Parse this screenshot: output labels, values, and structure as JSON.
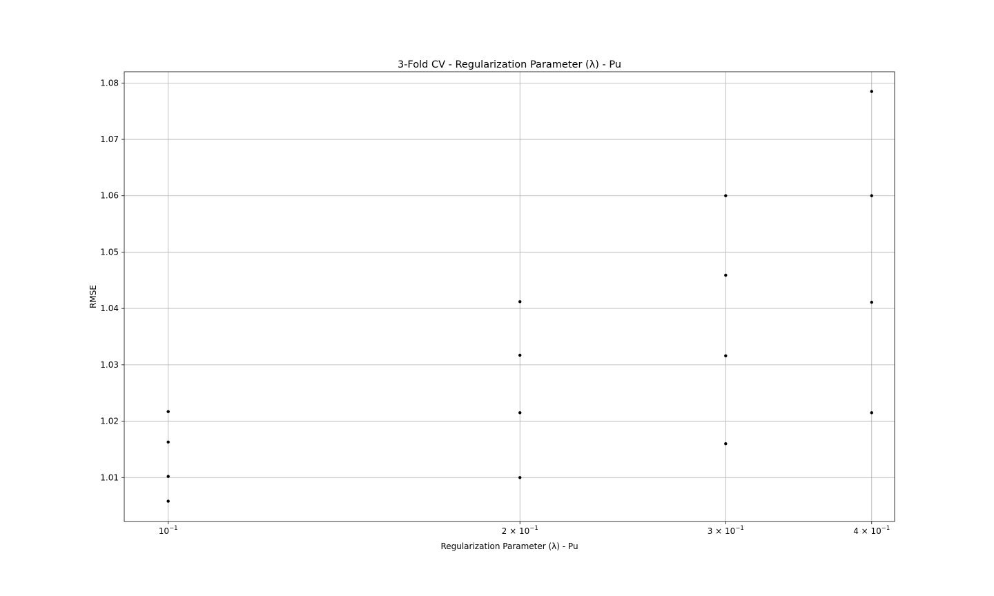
{
  "chart_data": {
    "type": "scatter",
    "title": "3-Fold CV - Regularization Parameter (λ) - Pu",
    "xlabel": "Regularization Parameter (λ) - Pu",
    "ylabel": "RMSE",
    "xscale": "log",
    "xlim": [
      0.0917,
      0.4185
    ],
    "ylim": [
      1.0022,
      1.082
    ],
    "grid": true,
    "legend": "none",
    "marker_color": "#000000",
    "x_ticks": [
      {
        "value": 0.1,
        "mantissa": "",
        "base": "10",
        "exp": "−1"
      },
      {
        "value": 0.2,
        "mantissa": "2 × ",
        "base": "10",
        "exp": "−1"
      },
      {
        "value": 0.3,
        "mantissa": "3 × ",
        "base": "10",
        "exp": "−1"
      },
      {
        "value": 0.4,
        "mantissa": "4 × ",
        "base": "10",
        "exp": "−1"
      }
    ],
    "y_ticks": [
      {
        "value": 1.01,
        "label": "1.01"
      },
      {
        "value": 1.02,
        "label": "1.02"
      },
      {
        "value": 1.03,
        "label": "1.03"
      },
      {
        "value": 1.04,
        "label": "1.04"
      },
      {
        "value": 1.05,
        "label": "1.05"
      },
      {
        "value": 1.06,
        "label": "1.06"
      },
      {
        "value": 1.07,
        "label": "1.07"
      },
      {
        "value": 1.08,
        "label": "1.08"
      }
    ],
    "points": [
      {
        "x": 0.1,
        "y": 1.0217
      },
      {
        "x": 0.1,
        "y": 1.0163
      },
      {
        "x": 0.1,
        "y": 1.0102
      },
      {
        "x": 0.1,
        "y": 1.0058
      },
      {
        "x": 0.2,
        "y": 1.0412
      },
      {
        "x": 0.2,
        "y": 1.0317
      },
      {
        "x": 0.2,
        "y": 1.0215
      },
      {
        "x": 0.2,
        "y": 1.01
      },
      {
        "x": 0.3,
        "y": 1.06
      },
      {
        "x": 0.3,
        "y": 1.0459
      },
      {
        "x": 0.3,
        "y": 1.0316
      },
      {
        "x": 0.3,
        "y": 1.016
      },
      {
        "x": 0.4,
        "y": 1.0785
      },
      {
        "x": 0.4,
        "y": 1.06
      },
      {
        "x": 0.4,
        "y": 1.0411
      },
      {
        "x": 0.4,
        "y": 1.0215
      }
    ]
  }
}
